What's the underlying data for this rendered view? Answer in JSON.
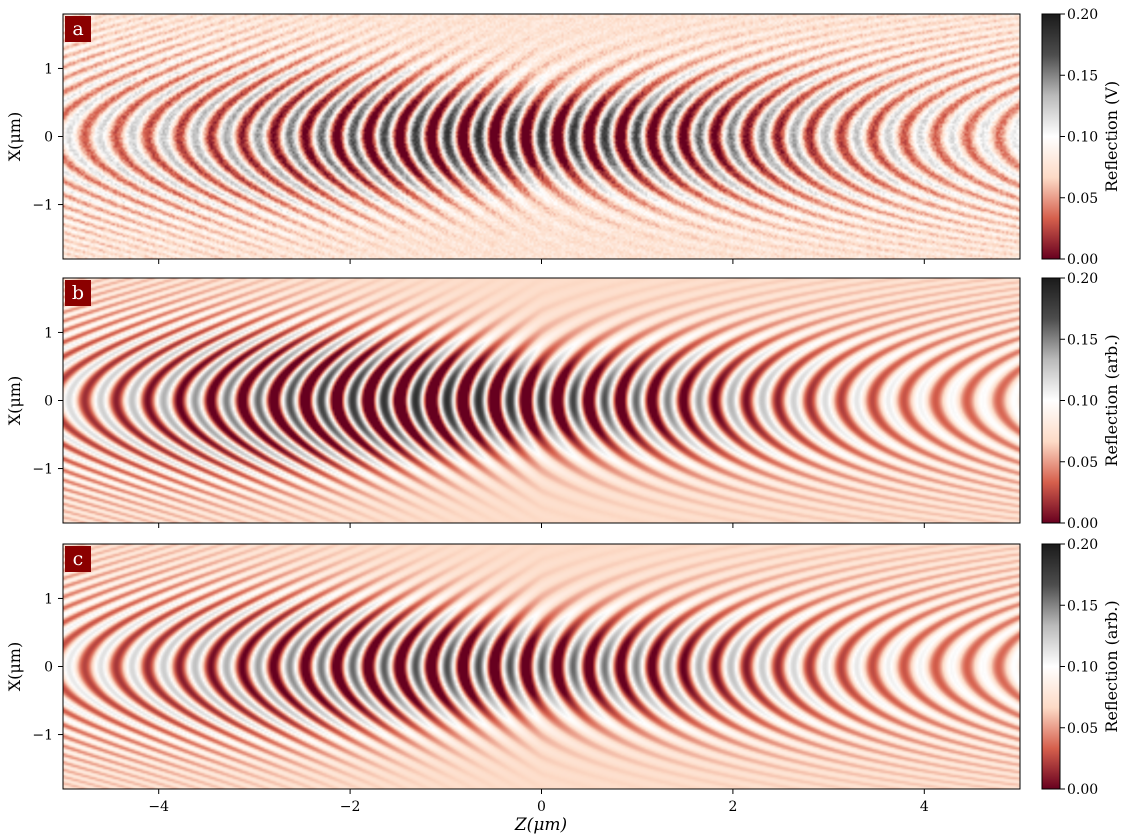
{
  "figure": {
    "xlabel": "Z(μm)"
  },
  "chart_data": [
    {
      "type": "heatmap",
      "panel_label": "a",
      "ylabel": "X(μm)",
      "xlim": [
        -5.0,
        5.0
      ],
      "ylim": [
        -1.8,
        1.8
      ],
      "xticks": [
        -4,
        -2,
        0,
        2,
        4
      ],
      "xticklabels": [
        "",
        "",
        "",
        "",
        ""
      ],
      "yticks": [
        1,
        0,
        -1
      ],
      "yticklabels": [
        "1",
        "0",
        "−1"
      ],
      "colorbar": {
        "label": "Reflection (V)",
        "min": 0.0,
        "max": 0.2,
        "ticks": [
          "0.20",
          "0.15",
          "0.10",
          "0.05",
          "0.00"
        ],
        "colormap": "RdGy",
        "colors": [
          "#67001f",
          "#d6604d",
          "#fddbc7",
          "#ffffff",
          "#bababa",
          "#4d4d4d",
          "#1a1a1a"
        ]
      },
      "background_value": 0.075,
      "fringe_period_um": 0.33,
      "peak_amplitude_at_z": -0.3,
      "amplitude_range": [
        0.03,
        0.11
      ],
      "noise": true
    },
    {
      "type": "heatmap",
      "panel_label": "b",
      "ylabel": "X(μm)",
      "xlim": [
        -5.0,
        5.0
      ],
      "ylim": [
        -1.8,
        1.8
      ],
      "xticks": [
        -4,
        -2,
        0,
        2,
        4
      ],
      "xticklabels": [
        "",
        "",
        "",
        "",
        ""
      ],
      "yticks": [
        1,
        0,
        -1
      ],
      "yticklabels": [
        "1",
        "0",
        "−1"
      ],
      "colorbar": {
        "label": "Reflection (arb.)",
        "min": 0.0,
        "max": 0.2,
        "ticks": [
          "0.20",
          "0.15",
          "0.10",
          "0.05",
          "0.00"
        ],
        "colormap": "RdGy",
        "colors": [
          "#67001f",
          "#d6604d",
          "#fddbc7",
          "#ffffff",
          "#bababa",
          "#4d4d4d",
          "#1a1a1a"
        ]
      },
      "background_value": 0.068,
      "fringe_period_um": 0.33,
      "peak_amplitude_at_z": -1.0,
      "amplitude_range": [
        0.03,
        0.12
      ],
      "noise": false
    },
    {
      "type": "heatmap",
      "panel_label": "c",
      "ylabel": "X(μm)",
      "xlim": [
        -5.0,
        5.0
      ],
      "ylim": [
        -1.8,
        1.8
      ],
      "xticks": [
        -4,
        -2,
        0,
        2,
        4
      ],
      "xticklabels": [
        "−4",
        "−2",
        "0",
        "2",
        "4"
      ],
      "yticks": [
        1,
        0,
        -1
      ],
      "yticklabels": [
        "1",
        "0",
        "−1"
      ],
      "colorbar": {
        "label": "Reflection (arb.)",
        "min": 0.0,
        "max": 0.2,
        "ticks": [
          "0.20",
          "0.15",
          "0.10",
          "0.05",
          "0.00"
        ],
        "colormap": "RdGy",
        "colors": [
          "#67001f",
          "#d6604d",
          "#fddbc7",
          "#ffffff",
          "#bababa",
          "#4d4d4d",
          "#1a1a1a"
        ]
      },
      "background_value": 0.068,
      "fringe_period_um": 0.33,
      "peak_amplitude_at_z": -0.8,
      "amplitude_range": [
        0.03,
        0.1
      ],
      "noise": false
    }
  ]
}
